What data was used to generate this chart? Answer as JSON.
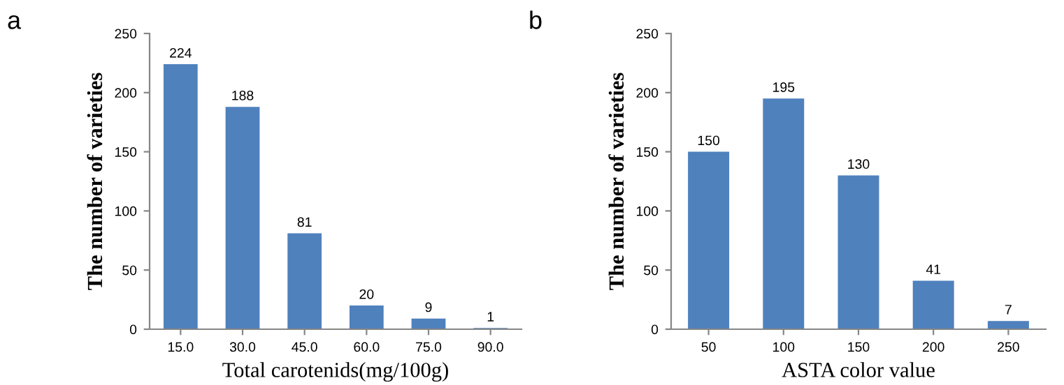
{
  "chart_data": [
    {
      "type": "bar",
      "title": "a",
      "categories": [
        "15.0",
        "30.0",
        "45.0",
        "60.0",
        "75.0",
        "90.0"
      ],
      "values": [
        224,
        188,
        81,
        20,
        9,
        1
      ],
      "color": "#4f81bd",
      "ylim": [
        0,
        250
      ],
      "yticks": [
        0,
        50,
        100,
        150,
        200,
        250
      ],
      "xlabel": "Total carotenids(mg/100g)",
      "ylabel": "The number of varieties",
      "data_labels": true,
      "grid": false,
      "legend": false
    },
    {
      "type": "bar",
      "title": "b",
      "categories": [
        "50",
        "100",
        "150",
        "200",
        "250"
      ],
      "values": [
        150,
        195,
        130,
        41,
        7
      ],
      "color": "#4f81bd",
      "ylim": [
        0,
        250
      ],
      "yticks": [
        0,
        50,
        100,
        150,
        200,
        250
      ],
      "xlabel": "ASTA color value",
      "ylabel": "The number of varieties",
      "data_labels": true,
      "grid": false,
      "legend": false
    }
  ]
}
